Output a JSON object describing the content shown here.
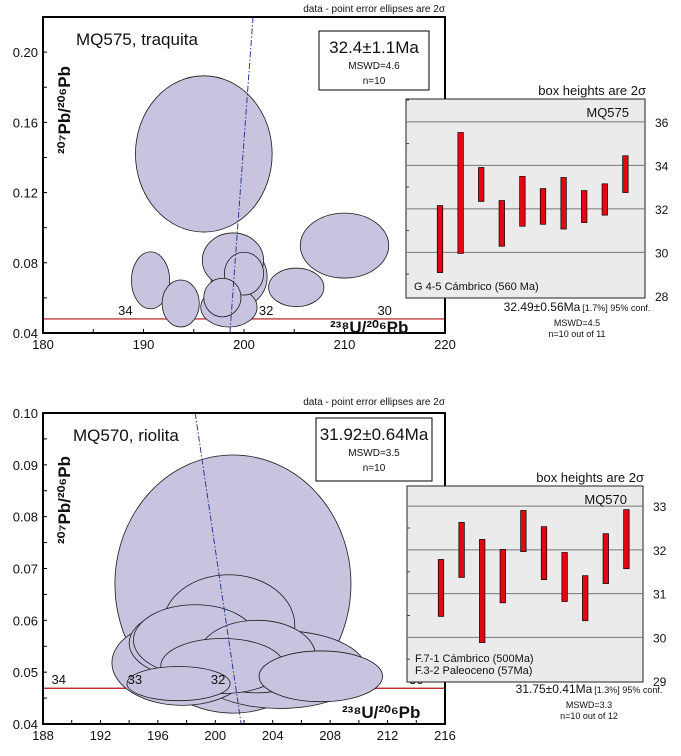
{
  "chart_data": [
    {
      "type": "scatter",
      "subtype": "concordia-error-ellipses",
      "title": "MQ575, traquita",
      "note": "data - point error ellipses are 2σ",
      "xlabel": "²³⁸U/²⁰⁶Pb",
      "ylabel": "²⁰⁷Pb/²⁰⁶Pb",
      "xlim": [
        180,
        220
      ],
      "ylim": [
        0.04,
        0.22
      ],
      "xticks": [
        180,
        190,
        200,
        210,
        220
      ],
      "yticks": [
        0.04,
        0.08,
        0.12,
        0.16,
        0.2
      ],
      "xtick_labels": [
        "180",
        "190",
        "200",
        "210",
        "220"
      ],
      "ytick_labels": [
        "0.04",
        "0.08",
        "0.12",
        "0.16",
        "0.20"
      ],
      "result": {
        "age": "32.4±1.1Ma",
        "mswd": "MSWD=4.6",
        "n": "n=10"
      },
      "ellipses": [
        {
          "x": 196.0,
          "y": 0.142,
          "sx": 6.8,
          "sy": 0.0445
        },
        {
          "x": 210.0,
          "y": 0.0898,
          "sx": 4.4,
          "sy": 0.0185
        },
        {
          "x": 205.2,
          "y": 0.066,
          "sx": 2.75,
          "sy": 0.011
        },
        {
          "x": 190.7,
          "y": 0.07,
          "sx": 1.9,
          "sy": 0.0162
        },
        {
          "x": 193.7,
          "y": 0.0568,
          "sx": 1.85,
          "sy": 0.0134
        },
        {
          "x": 199.5,
          "y": 0.072,
          "sx": 2.8,
          "sy": 0.017
        },
        {
          "x": 198.9,
          "y": 0.0815,
          "sx": 3.05,
          "sy": 0.0155
        },
        {
          "x": 198.5,
          "y": 0.0547,
          "sx": 2.8,
          "sy": 0.0113
        },
        {
          "x": 200.0,
          "y": 0.0738,
          "sx": 1.95,
          "sy": 0.0122
        },
        {
          "x": 197.85,
          "y": 0.0602,
          "sx": 1.85,
          "sy": 0.011
        }
      ],
      "concordia": {
        "y": 0.048,
        "x_range": [
          180,
          220
        ],
        "ages": [
          {
            "label": "34",
            "x": 188.2
          },
          {
            "label": "32",
            "x": 202.2
          },
          {
            "label": "30",
            "x": 214.0
          }
        ]
      },
      "reference_line": [
        [
          200.9,
          0.22
        ],
        [
          198.6,
          0.04
        ]
      ],
      "colors": {
        "ellipse": "#c8c4e0",
        "concordia": "#b01010",
        "reference_line": "#2a3a9a"
      }
    },
    {
      "type": "bar",
      "subtype": "range-bars",
      "title": "MQ575",
      "note": "box heights are 2σ",
      "ylim": [
        27.9,
        37.05
      ],
      "yticks": [
        28,
        30,
        32,
        34,
        36
      ],
      "ytick_labels": [
        "28",
        "30",
        "32",
        "34",
        "36"
      ],
      "legend": [
        "G 4-5 Cámbrico (560 Ma)"
      ],
      "bars": [
        [
          29.07,
          32.15
        ],
        [
          29.95,
          35.51
        ],
        [
          32.34,
          33.9
        ],
        [
          30.28,
          32.38
        ],
        [
          31.2,
          33.49
        ],
        [
          31.29,
          32.93
        ],
        [
          31.07,
          33.44
        ],
        [
          31.37,
          32.84
        ],
        [
          31.71,
          33.15
        ],
        [
          32.75,
          34.44
        ]
      ],
      "summary": {
        "age": "32.49±0.56Ma",
        "pct": "[1.7%] 95% conf.",
        "mswd": "MSWD=4.5",
        "n": "n=10 out of 11"
      },
      "colors": {
        "bar": "#e30613",
        "background": "#ebebeb"
      }
    },
    {
      "type": "scatter",
      "subtype": "concordia-error-ellipses",
      "title": "MQ570, riolita",
      "note": "data - point error ellipses are 2σ",
      "xlabel": "²³⁸U/²⁰⁶Pb",
      "ylabel": "²⁰⁷Pb/²⁰⁶Pb",
      "xlim": [
        188,
        216
      ],
      "ylim": [
        0.04,
        0.1
      ],
      "xticks": [
        188,
        192,
        196,
        200,
        204,
        208,
        212,
        216
      ],
      "yticks": [
        0.04,
        0.05,
        0.06,
        0.07,
        0.08,
        0.09,
        0.1
      ],
      "xtick_labels": [
        "188",
        "192",
        "196",
        "200",
        "204",
        "208",
        "212",
        "216"
      ],
      "ytick_labels": [
        "0.04",
        "0.05",
        "0.06",
        "0.07",
        "0.08",
        "0.09",
        "0.10"
      ],
      "result": {
        "age": "31.92±0.64Ma",
        "mswd": "MSWD=3.5",
        "n": "n=10"
      },
      "ellipses": [
        {
          "x": 201.23,
          "y": 0.067,
          "sx": 8.22,
          "sy": 0.0249
        },
        {
          "x": 200.94,
          "y": 0.059,
          "sx": 4.6,
          "sy": 0.0098
        },
        {
          "x": 204.5,
          "y": 0.0505,
          "sx": 6.0,
          "sy": 0.0075
        },
        {
          "x": 197.7,
          "y": 0.0518,
          "sx": 4.9,
          "sy": 0.0082
        },
        {
          "x": 198.2,
          "y": 0.0556,
          "sx": 4.2,
          "sy": 0.0066
        },
        {
          "x": 198.6,
          "y": 0.0562,
          "sx": 4.3,
          "sy": 0.0068
        },
        {
          "x": 202.9,
          "y": 0.053,
          "sx": 4.1,
          "sy": 0.007
        },
        {
          "x": 200.5,
          "y": 0.0512,
          "sx": 4.3,
          "sy": 0.0053
        },
        {
          "x": 197.44,
          "y": 0.0478,
          "sx": 3.59,
          "sy": 0.0033
        },
        {
          "x": 207.35,
          "y": 0.0492,
          "sx": 4.3,
          "sy": 0.0049
        }
      ],
      "concordia": {
        "y": 0.0469,
        "x_range": [
          188,
          216
        ],
        "ages": [
          {
            "label": "34",
            "x": 189.1
          },
          {
            "label": "33",
            "x": 194.4
          },
          {
            "label": "32",
            "x": 200.2
          },
          {
            "label": "30",
            "x": 214.0
          }
        ]
      },
      "reference_line": [
        [
          198.6,
          0.1
        ],
        [
          201.8,
          0.04
        ]
      ],
      "colors": {
        "ellipse": "#c8c4e0",
        "concordia": "#b01010",
        "reference_line": "#2a3a9a"
      }
    },
    {
      "type": "bar",
      "subtype": "range-bars",
      "title": "MQ570",
      "note": "box heights are 2σ",
      "ylim": [
        28.98,
        33.46
      ],
      "yticks": [
        29,
        30,
        31,
        32,
        33
      ],
      "ytick_labels": [
        "29",
        "30",
        "31",
        "32",
        "33"
      ],
      "legend": [
        "F.7-1 Cámbrico (500Ma)",
        "F.3-2 Paleoceno (57Ma)"
      ],
      "bars": [
        [
          30.48,
          31.78
        ],
        [
          31.37,
          32.63
        ],
        [
          29.88,
          32.24
        ],
        [
          30.79,
          32.01
        ],
        [
          31.96,
          32.9
        ],
        [
          31.32,
          32.53
        ],
        [
          30.82,
          31.94
        ],
        [
          30.38,
          31.41
        ],
        [
          31.23,
          32.37
        ],
        [
          31.57,
          32.92
        ]
      ],
      "summary": {
        "age": "31.75±0.41Ma",
        "pct": "[1.3%] 95% conf.",
        "mswd": "MSWD=3.3",
        "n": "n=10 out of 12"
      },
      "colors": {
        "bar": "#e30613",
        "background": "#ebebeb"
      }
    }
  ]
}
